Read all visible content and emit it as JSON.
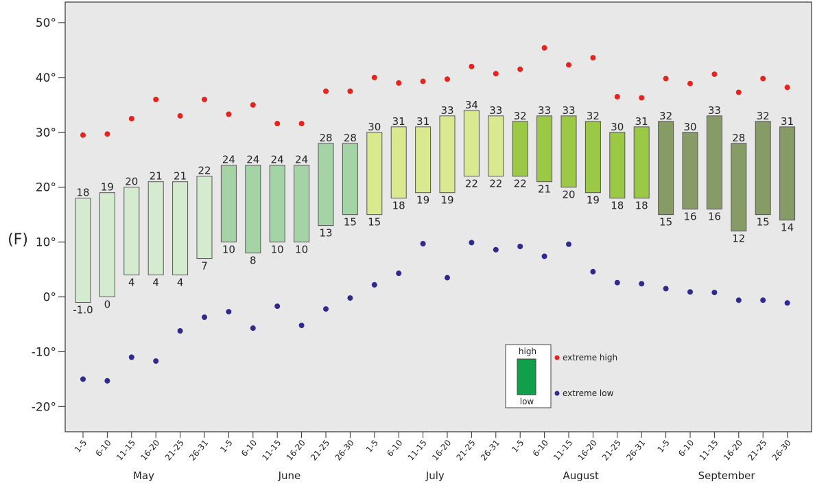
{
  "chart_data": {
    "type": "bar",
    "ylabel": "(F)",
    "ylim": [
      -25,
      52
    ],
    "yticks": [
      {
        "value": 50,
        "label": "50°"
      },
      {
        "value": 40,
        "label": "40°"
      },
      {
        "value": 30,
        "label": "30°"
      },
      {
        "value": 20,
        "label": "20°"
      },
      {
        "value": 10,
        "label": "10°"
      },
      {
        "value": 0,
        "label": "0°"
      },
      {
        "value": -10,
        "label": "-10°"
      },
      {
        "value": -20,
        "label": "-20°"
      }
    ],
    "months": [
      "May",
      "June",
      "July",
      "August",
      "September"
    ],
    "month_colors": [
      "#d4ebcf",
      "#a4d4a6",
      "#d9e98f",
      "#9cc945",
      "#879b67"
    ],
    "categories": [
      "1-5",
      "6-10",
      "11-15",
      "16-20",
      "21-25",
      "26-31",
      "1-5",
      "6-10",
      "11-15",
      "16-20",
      "21-25",
      "26-30",
      "1-5",
      "6-10",
      "11-15",
      "16-20",
      "21-25",
      "26-31",
      "1-5",
      "6-10",
      "11-15",
      "16-20",
      "21-25",
      "26-31",
      "1-5",
      "6-10",
      "11-15",
      "16-20",
      "21-25",
      "26-30"
    ],
    "month_index": [
      0,
      0,
      0,
      0,
      0,
      0,
      1,
      1,
      1,
      1,
      1,
      1,
      2,
      2,
      2,
      2,
      2,
      2,
      3,
      3,
      3,
      3,
      3,
      3,
      4,
      4,
      4,
      4,
      4,
      4
    ],
    "high": [
      18,
      19,
      20,
      21,
      21,
      22,
      24,
      24,
      24,
      24,
      28,
      28,
      30,
      31,
      31,
      33,
      34,
      33,
      32,
      33,
      33,
      32,
      30,
      31,
      32,
      30,
      33,
      28,
      32,
      31
    ],
    "low": [
      -1,
      0,
      4,
      4,
      4,
      7,
      10,
      8,
      10,
      10,
      13,
      15,
      15,
      18,
      19,
      19,
      22,
      22,
      22,
      21,
      20,
      19,
      18,
      18,
      15,
      16,
      16,
      12,
      15,
      14
    ],
    "high_labels": [
      "18",
      "19",
      "20",
      "21",
      "21",
      "22",
      "24",
      "24",
      "24",
      "24",
      "28",
      "28",
      "30",
      "31",
      "31",
      "33",
      "34",
      "33",
      "32",
      "33",
      "33",
      "32",
      "30",
      "31",
      "32",
      "30",
      "33",
      "28",
      "32",
      "31"
    ],
    "low_labels": [
      "-1.0",
      "0",
      "4",
      "4",
      "4",
      "7",
      "10",
      "8",
      "10",
      "10",
      "13",
      "15",
      "15",
      "18",
      "19",
      "19",
      "22",
      "22",
      "22",
      "21",
      "20",
      "19",
      "18",
      "18",
      "15",
      "16",
      "16",
      "12",
      "15",
      "14"
    ],
    "extreme_high": [
      29.5,
      29.7,
      32.5,
      36,
      33,
      36,
      33.3,
      35,
      31.6,
      31.6,
      37.5,
      37.5,
      40,
      39,
      39.3,
      39.7,
      42,
      40.7,
      41.5,
      45.4,
      42.3,
      43.6,
      36.5,
      36.3,
      39.8,
      38.9,
      40.6,
      37.3,
      39.8,
      38.2
    ],
    "extreme_low": [
      -15,
      -15.3,
      -11,
      -11.7,
      -6.2,
      -3.7,
      -2.7,
      -5.7,
      -1.7,
      -5.2,
      -2.2,
      -0.2,
      2.2,
      4.3,
      9.7,
      3.5,
      9.9,
      8.6,
      9.2,
      7.4,
      9.6,
      4.6,
      2.6,
      2.4,
      1.5,
      0.9,
      0.8,
      -0.6,
      -0.6,
      -1.1
    ],
    "grid": false,
    "legend": {
      "position": "bottom-center",
      "box_high": "high",
      "box_low": "low",
      "extreme_high": "extreme high",
      "extreme_low": "extreme low"
    },
    "colors": {
      "background": "#e8e8e8",
      "extreme_high": "#e8231e",
      "extreme_low": "#2f2a8f",
      "legend_box": "#11a04a",
      "bar_border": "#555555"
    }
  }
}
